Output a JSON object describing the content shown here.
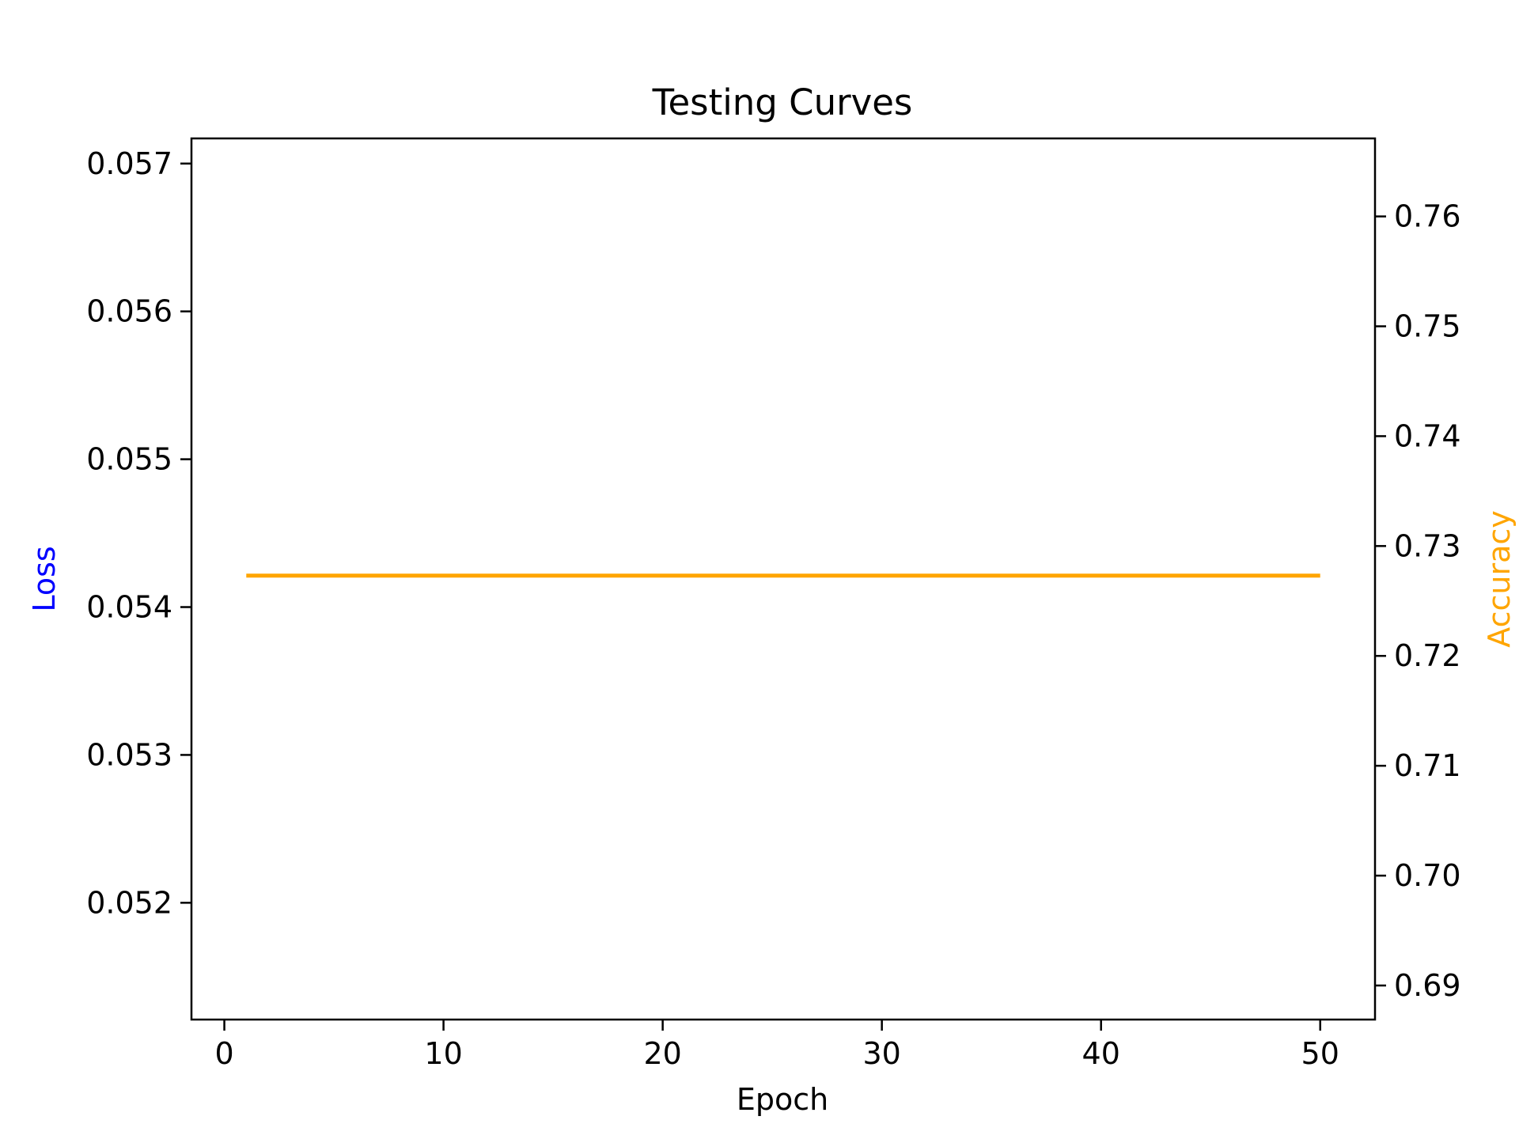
{
  "chart_data": {
    "type": "line",
    "title": "Testing Curves",
    "xlabel": "Epoch",
    "ylabel_left": "Loss",
    "ylabel_right": "Accuracy",
    "colors": {
      "left_axis_label": "#0000ff",
      "right_axis_label": "#ffa500",
      "accuracy_line": "#ffa500",
      "axes": "#000000",
      "background": "#ffffff"
    },
    "xlim": [
      -1.5,
      52.5
    ],
    "ylim_left": [
      0.05121,
      0.05717
    ],
    "ylim_right": [
      0.6869,
      0.7671
    ],
    "x_ticks": [
      {
        "value": 0,
        "label": "0"
      },
      {
        "value": 10,
        "label": "10"
      },
      {
        "value": 20,
        "label": "20"
      },
      {
        "value": 30,
        "label": "30"
      },
      {
        "value": 40,
        "label": "40"
      },
      {
        "value": 50,
        "label": "50"
      }
    ],
    "y_ticks_left": [
      {
        "value": 0.052,
        "label": "0.052"
      },
      {
        "value": 0.053,
        "label": "0.053"
      },
      {
        "value": 0.054,
        "label": "0.054"
      },
      {
        "value": 0.055,
        "label": "0.055"
      },
      {
        "value": 0.056,
        "label": "0.056"
      },
      {
        "value": 0.057,
        "label": "0.057"
      }
    ],
    "y_ticks_right": [
      {
        "value": 0.69,
        "label": "0.69"
      },
      {
        "value": 0.7,
        "label": "0.70"
      },
      {
        "value": 0.71,
        "label": "0.71"
      },
      {
        "value": 0.72,
        "label": "0.72"
      },
      {
        "value": 0.73,
        "label": "0.73"
      },
      {
        "value": 0.74,
        "label": "0.74"
      },
      {
        "value": 0.75,
        "label": "0.75"
      },
      {
        "value": 0.76,
        "label": "0.76"
      }
    ],
    "series": [
      {
        "axis": "right",
        "color": "#ffa500",
        "x": [
          1,
          50
        ],
        "values": [
          0.7273,
          0.7273
        ]
      }
    ],
    "grid": false,
    "legend": "none"
  }
}
